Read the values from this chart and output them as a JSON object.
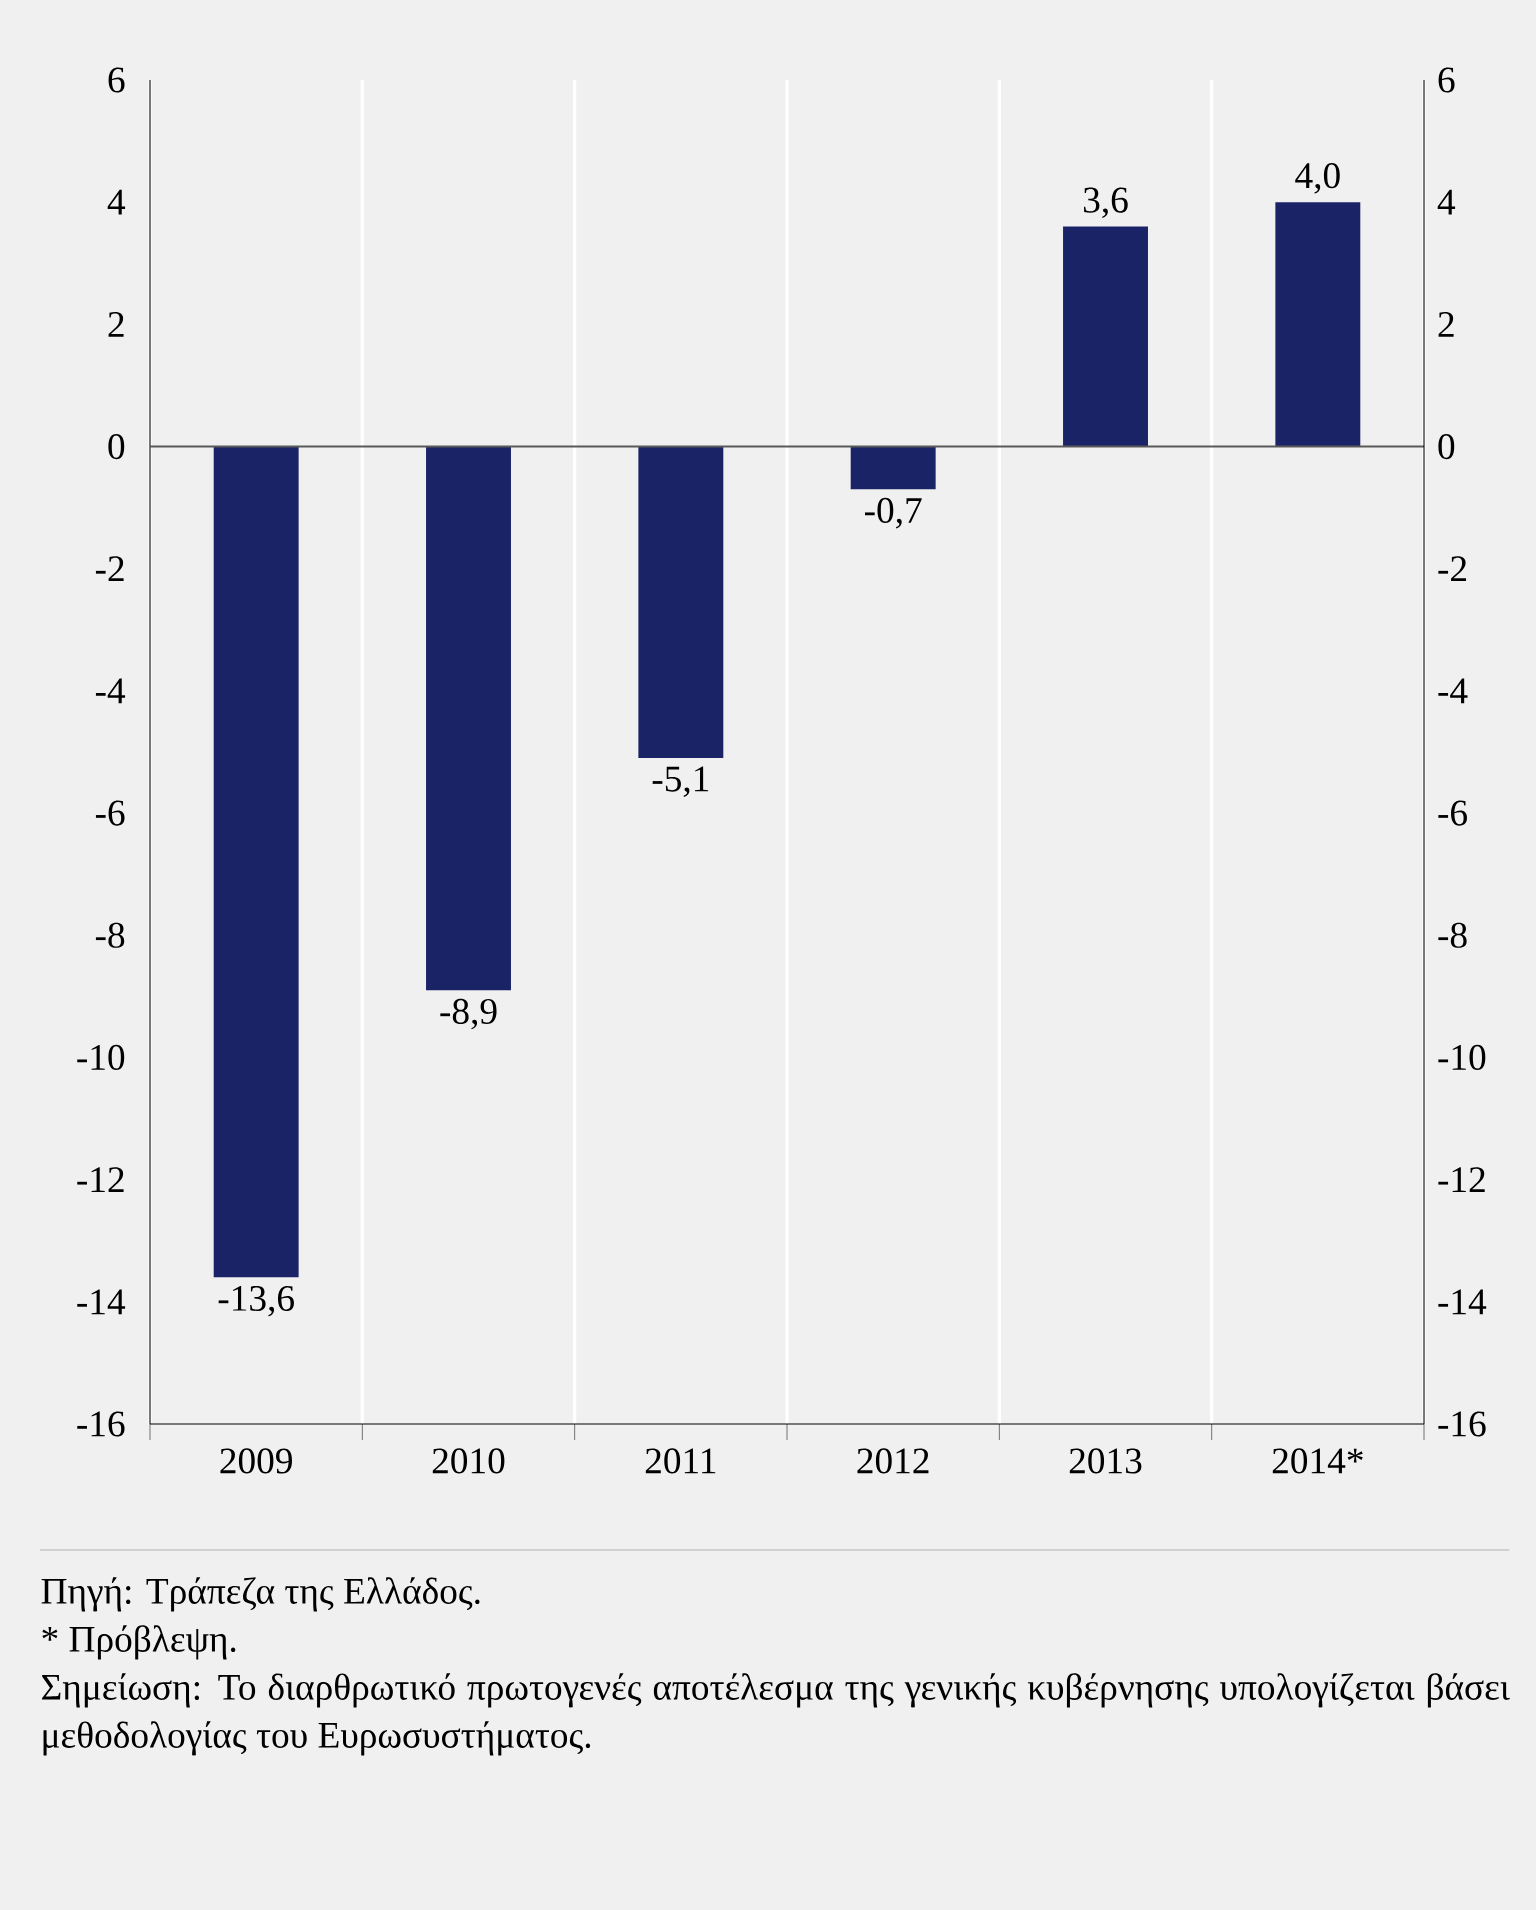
{
  "chart_data": {
    "type": "bar",
    "categories": [
      "2009",
      "2010",
      "2011",
      "2012",
      "2013",
      "2014*"
    ],
    "values": [
      -13.6,
      -8.9,
      -5.1,
      -0.7,
      3.6,
      4.0
    ],
    "value_labels": [
      "-13,6",
      "-8,9",
      "-5,1",
      "-0,7",
      "3,6",
      "4,0"
    ],
    "color": "#1a2366",
    "ylim": [
      -16,
      6
    ],
    "yticks": [
      -16,
      -14,
      -12,
      -10,
      -8,
      -6,
      -4,
      -2,
      0,
      2,
      4,
      6
    ],
    "y2lim": [
      -16,
      6
    ],
    "y2ticks": [
      -16,
      -14,
      -12,
      -10,
      -8,
      -6,
      -4,
      -2,
      0,
      2,
      4,
      6
    ],
    "grid": "x",
    "annotations": [
      "Πηγή: Τράπεζα της Ελλάδος.",
      "* Πρόβλεψη.",
      "Σημείωση: Το διαρθρωτικό πρωτογενές αποτέλεσμα της γενικής κυβέρνησης υπολογίζεται βάσει μεθοδολογίας του Ευρωσυστήματος."
    ]
  }
}
